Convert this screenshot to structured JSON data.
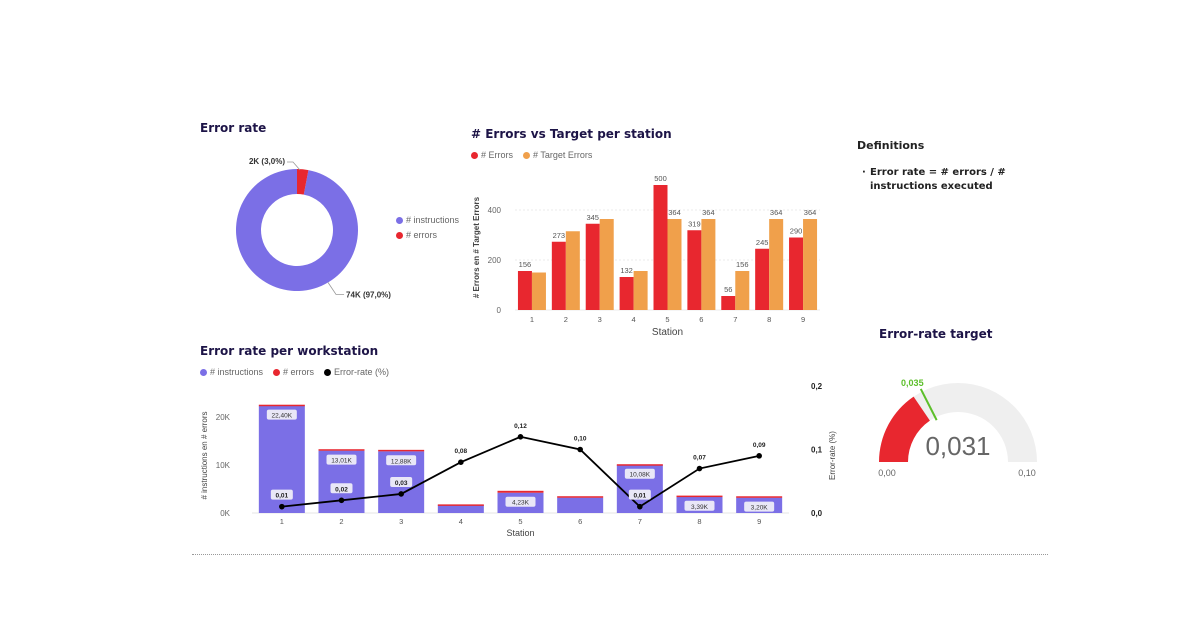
{
  "donut": {
    "title": "Error rate",
    "legend": [
      {
        "label": "# instructions",
        "color": "#7b6fe6"
      },
      {
        "label": "# errors",
        "color": "#e8272f"
      }
    ],
    "label_small": "2K (3,0%)",
    "label_large": "74K (97,0%)"
  },
  "errors_chart": {
    "title": "# Errors vs Target per station",
    "legend": [
      {
        "label": "# Errors",
        "color": "#e8272f"
      },
      {
        "label": "# Target Errors",
        "color": "#f0a04b"
      }
    ],
    "ylabel": "# Errors en # Target Errors",
    "xlabel": "Station",
    "yticks": [
      "0",
      "200",
      "400"
    ]
  },
  "definitions": {
    "title": "Definitions",
    "bullet": "·",
    "text": "Error rate = # errors / # instructions executed"
  },
  "workstation_chart": {
    "title": "Error rate per workstation",
    "legend": [
      {
        "label": "# instructions",
        "color": "#7b6fe6"
      },
      {
        "label": "# errors",
        "color": "#e8272f"
      },
      {
        "label": "Error-rate (%)",
        "color": "#000000"
      }
    ],
    "ylabel": "# instructions en # errors",
    "y2label": "Error-rate (%)",
    "xlabel": "Station",
    "yticks": [
      "0K",
      "10K",
      "20K"
    ],
    "y2ticks": [
      "0,0",
      "0,1",
      "0,2"
    ]
  },
  "gauge": {
    "title": "Error-rate target",
    "value_label": "0,031",
    "min_label": "0,00",
    "max_label": "0,10",
    "target_label": "0,035",
    "fill_color": "#e8272f",
    "target_color": "#5cbf2a",
    "track_color": "#efefef"
  },
  "chart_data": [
    {
      "type": "pie",
      "title": "Error rate",
      "labels": [
        "# instructions",
        "# errors"
      ],
      "values": [
        74,
        2
      ],
      "percents": [
        97.0,
        3.0
      ],
      "data_labels": [
        "74K (97,0%)",
        "2K (3,0%)"
      ],
      "legend_position": "right"
    },
    {
      "type": "bar",
      "title": "# Errors vs Target per station",
      "categories": [
        "1",
        "2",
        "3",
        "4",
        "5",
        "6",
        "7",
        "8",
        "9"
      ],
      "series": [
        {
          "name": "# Errors",
          "values": [
            156,
            273,
            345,
            132,
            500,
            319,
            56,
            245,
            290
          ],
          "labels": [
            "156",
            "273",
            "345",
            "132",
            "500",
            "319",
            "56",
            "245",
            "290"
          ]
        },
        {
          "name": "# Target Errors",
          "values": [
            150,
            315,
            364,
            156,
            364,
            364,
            156,
            364,
            364
          ],
          "labels": [
            "",
            "",
            "",
            "",
            "364",
            "364",
            "156",
            "364",
            "364"
          ]
        }
      ],
      "xlabel": "Station",
      "ylabel": "# Errors en # Target Errors",
      "ylim": [
        0,
        500
      ],
      "grid": true,
      "legend_position": "top-left"
    },
    {
      "type": "bar",
      "title": "Error rate per workstation",
      "stacked": true,
      "categories": [
        "1",
        "2",
        "3",
        "4",
        "5",
        "6",
        "7",
        "8",
        "9"
      ],
      "series": [
        {
          "name": "# instructions",
          "values": [
            22400,
            13010,
            12880,
            1700,
            4230,
            3200,
            10080,
            3390,
            3200
          ],
          "labels": [
            "22,40K",
            "13,01K",
            "12,88K",
            "",
            "4,23K",
            "",
            "10,08K",
            "3,39K",
            "3,20K"
          ]
        },
        {
          "name": "# errors",
          "values": [
            200,
            300,
            300,
            100,
            400,
            300,
            100,
            240,
            290
          ]
        },
        {
          "name": "Error-rate (%)",
          "type": "line",
          "axis": "y2",
          "values": [
            0.01,
            0.02,
            0.03,
            0.08,
            0.12,
            0.1,
            0.01,
            0.07,
            0.09
          ],
          "labels": [
            "0,01",
            "0,02",
            "0,03",
            "0,08",
            "0,12",
            "0,10",
            "0,01",
            "0,07",
            "0,09"
          ]
        }
      ],
      "xlabel": "Station",
      "ylabel": "# instructions en # errors",
      "y2label": "Error-rate (%)",
      "ylim": [
        0,
        24000
      ],
      "y2lim": [
        0,
        0.2
      ],
      "legend_position": "top-left"
    },
    {
      "type": "gauge",
      "title": "Error-rate target",
      "value": 0.031,
      "min": 0.0,
      "max": 0.1,
      "target": 0.035
    }
  ]
}
